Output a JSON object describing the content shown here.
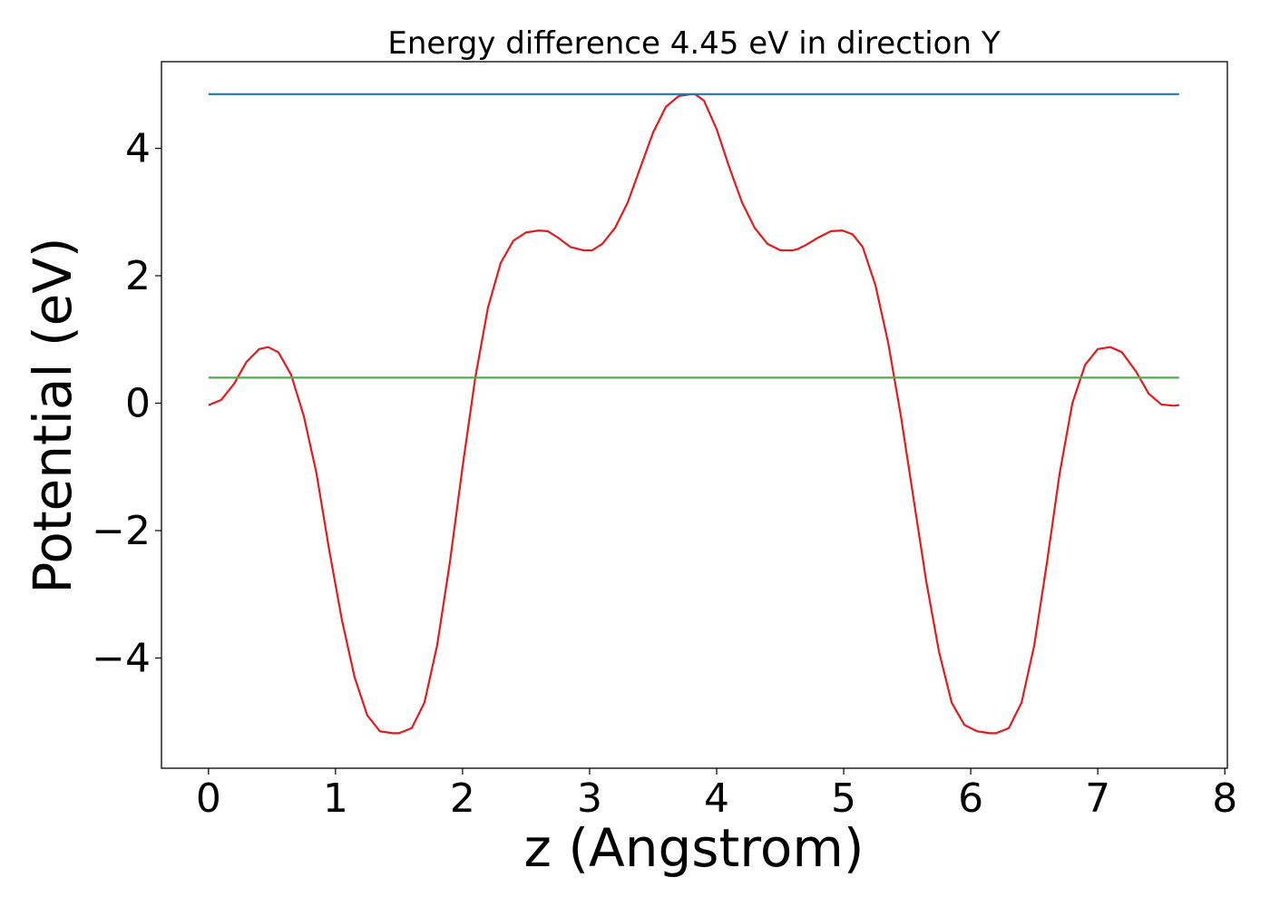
{
  "chart_data": {
    "type": "line",
    "title": "Energy difference 4.45 eV in direction Y",
    "xlabel": "z (Angstrom)",
    "ylabel": "Potential (eV)",
    "xlim": [
      -0.37,
      8.02
    ],
    "ylim": [
      -5.73,
      5.36
    ],
    "xticks": [
      0,
      1,
      2,
      3,
      4,
      5,
      6,
      7,
      8
    ],
    "xtick_labels": [
      "0",
      "1",
      "2",
      "3",
      "4",
      "5",
      "6",
      "7",
      "8"
    ],
    "yticks": [
      -4,
      -2,
      0,
      2,
      4
    ],
    "ytick_labels": [
      "−4",
      "−2",
      "0",
      "2",
      "4"
    ],
    "grid": false,
    "series": [
      {
        "color": "#e41a1c",
        "x": [
          0.0,
          0.1,
          0.2,
          0.3,
          0.4,
          0.47,
          0.55,
          0.65,
          0.75,
          0.85,
          0.95,
          1.05,
          1.15,
          1.25,
          1.35,
          1.45,
          1.5,
          1.6,
          1.7,
          1.8,
          1.9,
          2.0,
          2.1,
          2.2,
          2.3,
          2.4,
          2.5,
          2.6,
          2.67,
          2.75,
          2.85,
          2.95,
          3.02,
          3.1,
          3.2,
          3.3,
          3.4,
          3.5,
          3.6,
          3.7,
          3.8,
          3.83,
          3.9,
          4.0,
          4.1,
          4.2,
          4.3,
          4.4,
          4.5,
          4.6,
          4.64,
          4.7,
          4.8,
          4.9,
          4.99,
          5.07,
          5.15,
          5.25,
          5.35,
          5.45,
          5.55,
          5.65,
          5.75,
          5.85,
          5.95,
          6.05,
          6.15,
          6.2,
          6.3,
          6.4,
          6.5,
          6.6,
          6.7,
          6.8,
          6.9,
          7.0,
          7.1,
          7.19,
          7.3,
          7.4,
          7.5,
          7.6,
          7.64
        ],
        "values": [
          -0.03,
          0.05,
          0.3,
          0.65,
          0.85,
          0.88,
          0.8,
          0.45,
          -0.2,
          -1.1,
          -2.3,
          -3.4,
          -4.3,
          -4.9,
          -5.15,
          -5.18,
          -5.18,
          -5.1,
          -4.7,
          -3.8,
          -2.5,
          -1.0,
          0.4,
          1.5,
          2.2,
          2.55,
          2.68,
          2.71,
          2.7,
          2.6,
          2.45,
          2.4,
          2.4,
          2.5,
          2.75,
          3.15,
          3.7,
          4.25,
          4.65,
          4.82,
          4.85,
          4.85,
          4.75,
          4.3,
          3.7,
          3.15,
          2.75,
          2.5,
          2.4,
          2.4,
          2.42,
          2.48,
          2.6,
          2.7,
          2.71,
          2.65,
          2.45,
          1.85,
          0.95,
          -0.2,
          -1.5,
          -2.8,
          -3.9,
          -4.7,
          -5.05,
          -5.15,
          -5.18,
          -5.18,
          -5.1,
          -4.7,
          -3.8,
          -2.5,
          -1.1,
          0.0,
          0.6,
          0.85,
          0.88,
          0.8,
          0.5,
          0.15,
          -0.02,
          -0.04,
          -0.03
        ]
      },
      {
        "color": "#1f77b4",
        "x": [
          0.0,
          7.64
        ],
        "values": [
          4.85,
          4.85
        ]
      },
      {
        "color": "#4daf4a",
        "x": [
          0.0,
          7.64
        ],
        "values": [
          0.4,
          0.4
        ]
      }
    ]
  }
}
